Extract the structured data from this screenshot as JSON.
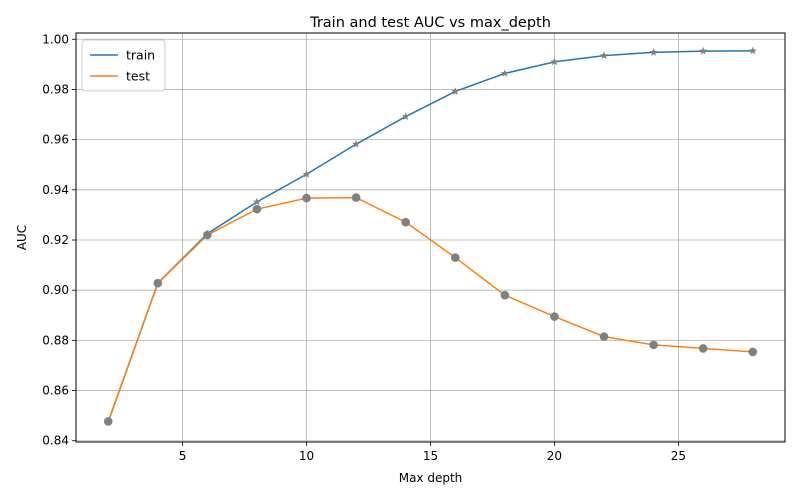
{
  "chart_data": {
    "type": "line",
    "title": "Train and test AUC vs max_depth",
    "xlabel": "Max depth",
    "ylabel": "AUC",
    "x": [
      2,
      4,
      6,
      8,
      10,
      12,
      14,
      16,
      18,
      20,
      22,
      24,
      26,
      28
    ],
    "xlim": [
      0.7,
      29.3
    ],
    "ylim": [
      0.8395,
      1.0025
    ],
    "xticks": [
      5,
      10,
      15,
      20,
      25
    ],
    "yticks": [
      0.84,
      0.86,
      0.88,
      0.9,
      0.92,
      0.94,
      0.96,
      0.98,
      1.0
    ],
    "xtick_labels": [
      "5",
      "10",
      "15",
      "20",
      "25"
    ],
    "ytick_labels": [
      "0.84",
      "0.86",
      "0.88",
      "0.90",
      "0.92",
      "0.94",
      "0.96",
      "0.98",
      "1.00"
    ],
    "grid": true,
    "legend_position": "top-left",
    "series": [
      {
        "name": "train",
        "color": "#1f77b4",
        "marker": "star",
        "values": [
          0.8475,
          0.9028,
          0.9225,
          0.9352,
          0.9462,
          0.9582,
          0.9692,
          0.9792,
          0.9864,
          0.991,
          0.9935,
          0.9948,
          0.9953,
          0.9954
        ]
      },
      {
        "name": "test",
        "color": "#ff7f0e",
        "marker": "circle",
        "values": [
          0.8477,
          0.9028,
          0.922,
          0.9323,
          0.9367,
          0.9369,
          0.9271,
          0.913,
          0.898,
          0.8895,
          0.8815,
          0.8782,
          0.8768,
          0.8754
        ]
      }
    ],
    "marker_color": "#808080"
  }
}
